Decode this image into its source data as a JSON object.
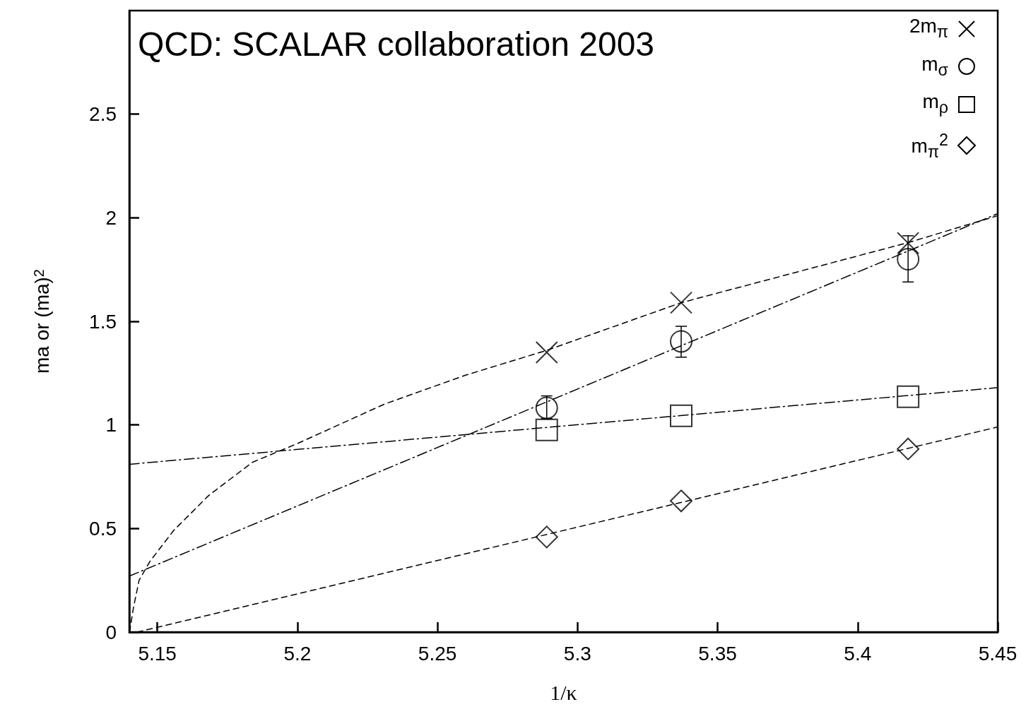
{
  "chart_data": {
    "type": "scatter",
    "xlabel": "1/κ",
    "ylabel": "ma or (ma)$^{2}$",
    "annotations": [
      "QCD: SCALAR collaboration 2003"
    ],
    "xlim": [
      5.14,
      5.45
    ],
    "xticks": [
      5.15,
      5.2,
      5.25,
      5.3,
      5.35,
      5.4,
      5.45
    ],
    "ylim": [
      0,
      3
    ],
    "yticks": [
      0,
      0.5,
      1,
      1.5,
      2,
      2.5
    ],
    "grid": false,
    "legend": "top right",
    "series": [
      {
        "name": "2m$_{π}$",
        "color": "#000000",
        "marker": "cross",
        "x": [
          5.289,
          5.337,
          5.418
        ],
        "values": [
          1.35,
          1.59,
          1.878
        ]
      },
      {
        "name": "m$_{σ}$",
        "color": "#000000",
        "marker": "circle",
        "x": [
          5.289,
          5.337,
          5.418
        ],
        "values": [
          1.082,
          1.403,
          1.8
        ],
        "errors": [
          [
            1.03,
            1.14
          ],
          [
            1.327,
            1.476
          ],
          [
            1.69,
            1.913
          ]
        ]
      },
      {
        "name": "m$_{ρ}$",
        "color": "#000000",
        "marker": "square",
        "x": [
          5.289,
          5.337,
          5.418
        ],
        "values": [
          0.976,
          1.044,
          1.136
        ]
      },
      {
        "name": "m$_{π}$$^{2}$",
        "color": "#000000",
        "marker": "diamond",
        "x": [
          5.289,
          5.337,
          5.418
        ],
        "values": [
          0.459,
          0.633,
          0.884
        ]
      },
      {
        "type": "line",
        "color": "#000000",
        "marker": "none",
        "line_style": "dashed",
        "x": [
          5.1401,
          5.1415,
          5.1435,
          5.1473,
          5.1558,
          5.1684,
          5.184,
          5.2,
          5.231,
          5.26,
          5.289,
          5.337,
          5.418,
          5.45
        ],
        "values": [
          0,
          0.12,
          0.25,
          0.34,
          0.49,
          0.66,
          0.82,
          0.91,
          1.1,
          1.24,
          1.36,
          1.59,
          1.88,
          2.01
        ]
      },
      {
        "type": "line",
        "color": "#000000",
        "marker": "none",
        "line_style": "dashdot",
        "x": [
          5.14,
          5.45
        ],
        "values": [
          0.27,
          2.02
        ]
      },
      {
        "type": "line",
        "color": "#000000",
        "marker": "none",
        "line_style": "dashdot",
        "x": [
          5.14,
          5.45
        ],
        "values": [
          0.81,
          1.18
        ]
      },
      {
        "type": "line",
        "color": "#000000",
        "marker": "none",
        "line_style": "dashed",
        "x": [
          5.1428,
          5.45
        ],
        "values": [
          0,
          0.99
        ]
      }
    ]
  }
}
